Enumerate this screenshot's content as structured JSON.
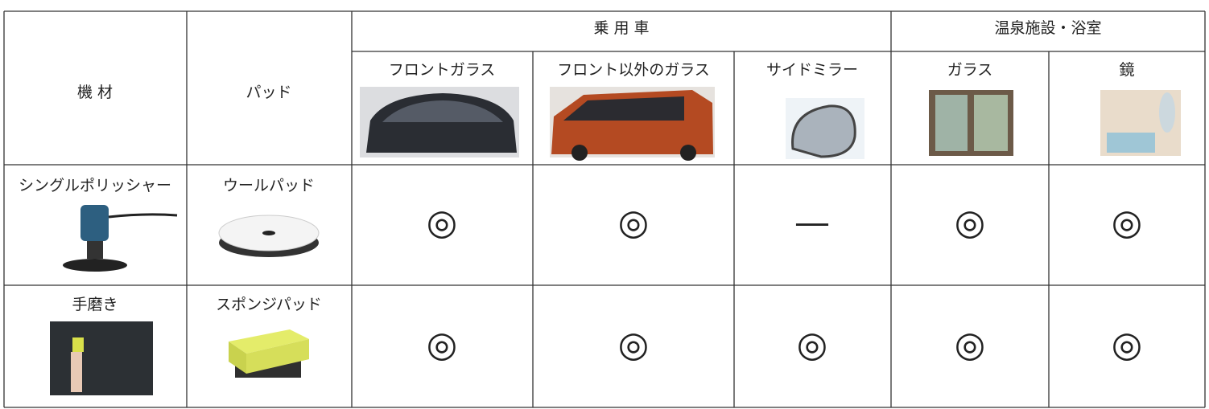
{
  "table": {
    "header": {
      "equipment": "機 材",
      "pad": "パッド",
      "groups": [
        {
          "label": "乗 用 車",
          "columns": [
            "フロントガラス",
            "フロント以外のガラス",
            "サイドミラー"
          ]
        },
        {
          "label": "温泉施設・浴室",
          "columns": [
            "ガラス",
            "鏡"
          ]
        }
      ]
    },
    "rows": [
      {
        "equipment": "シングルポリッシャー",
        "pad": "ウールパッド",
        "cells": [
          "◎",
          "◎",
          "—",
          "◎",
          "◎"
        ]
      },
      {
        "equipment": "手磨き",
        "pad": "スポンジパッド",
        "cells": [
          "◎",
          "◎",
          "◎",
          "◎",
          "◎"
        ]
      }
    ]
  }
}
